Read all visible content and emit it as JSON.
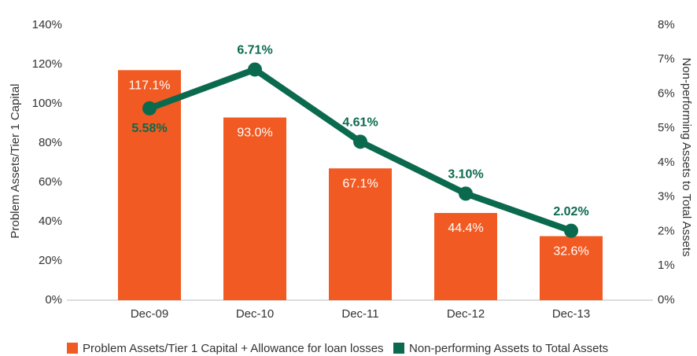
{
  "chart_data": {
    "type": "bar_line",
    "categories": [
      "Dec-09",
      "Dec-10",
      "Dec-11",
      "Dec-12",
      "Dec-13"
    ],
    "y_label": "Problem Assets/Tier 1 Capital",
    "y2_label": "Non-performing Assets to Total Assets",
    "series": [
      {
        "name": "Problem Assets/Tier 1 Capital + Allowance for loan losses",
        "type": "bar",
        "color": "#f15a22",
        "values": [
          117.1,
          93.0,
          67.1,
          44.4,
          32.6
        ],
        "value_labels": [
          "117.1%",
          "93.0%",
          "67.1%",
          "44.4%",
          "32.6%"
        ]
      },
      {
        "name": "Non-performing Assets to Total Assets",
        "type": "line",
        "axis": "y2",
        "color": "#0b6a4e",
        "values": [
          5.58,
          6.71,
          4.61,
          3.1,
          2.02
        ],
        "value_labels": [
          "5.58%",
          "6.71%",
          "4.61%",
          "3.10%",
          "2.02%"
        ]
      }
    ],
    "ylim": [
      0,
      140
    ],
    "yticks": [
      {
        "value": 0,
        "label": "0%"
      },
      {
        "value": 20,
        "label": "20%"
      },
      {
        "value": 40,
        "label": "40%"
      },
      {
        "value": 60,
        "label": "60%"
      },
      {
        "value": 80,
        "label": "80%"
      },
      {
        "value": 100,
        "label": "100%"
      },
      {
        "value": 120,
        "label": "120%"
      },
      {
        "value": 140,
        "label": "140%"
      }
    ],
    "y2lim": [
      0,
      8
    ],
    "y2ticks": [
      {
        "value": 0,
        "label": "0%"
      },
      {
        "value": 1,
        "label": "1%"
      },
      {
        "value": 2,
        "label": "2%"
      },
      {
        "value": 3,
        "label": "3%"
      },
      {
        "value": 4,
        "label": "4%"
      },
      {
        "value": 5,
        "label": "5%"
      },
      {
        "value": 6,
        "label": "6%"
      },
      {
        "value": 7,
        "label": "7%"
      },
      {
        "value": 8,
        "label": "8%"
      }
    ],
    "grid": false,
    "legend": "bottom"
  }
}
